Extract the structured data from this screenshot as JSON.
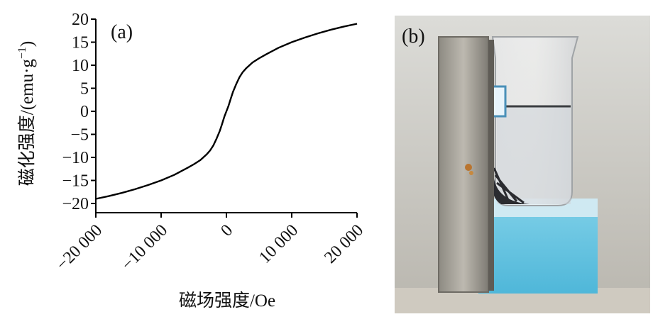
{
  "chart_data": {
    "type": "line",
    "panel_label": "(a)",
    "xlabel": "磁场强度/Oe",
    "ylabel": "磁化强度/(emu·g",
    "ylabel_sup": "−1",
    "ylabel_end": ")",
    "xlim": [
      -20000,
      20000
    ],
    "ylim": [
      -22,
      20
    ],
    "x_ticks": [
      -20000,
      -10000,
      0,
      10000,
      20000
    ],
    "x_tick_labels": [
      "−20 000",
      "−10 000",
      "0",
      "10 000",
      "20 000"
    ],
    "y_ticks": [
      20,
      15,
      10,
      5,
      0,
      -5,
      -10,
      -15,
      -20
    ],
    "y_tick_labels": [
      "20",
      "15",
      "10",
      "5",
      "0",
      "−5",
      "−10",
      "−15",
      "−20"
    ],
    "grid": false,
    "series": [
      {
        "color": "#000000",
        "x": [
          -20000,
          -18000,
          -16000,
          -14000,
          -12000,
          -10000,
          -8000,
          -6000,
          -5000,
          -4000,
          -3000,
          -2500,
          -2000,
          -1500,
          -1000,
          -700,
          -500,
          -300,
          0,
          300,
          500,
          700,
          1000,
          1500,
          2000,
          2500,
          3000,
          4000,
          5000,
          6000,
          8000,
          10000,
          12000,
          14000,
          16000,
          18000,
          20000
        ],
        "y": [
          -19.0,
          -18.4,
          -17.7,
          -16.9,
          -16.0,
          -15.0,
          -13.8,
          -12.3,
          -11.5,
          -10.6,
          -9.3,
          -8.5,
          -7.4,
          -5.9,
          -4.2,
          -2.9,
          -2.0,
          -1.1,
          0.0,
          1.1,
          2.0,
          2.9,
          4.2,
          5.9,
          7.4,
          8.5,
          9.3,
          10.6,
          11.5,
          12.3,
          13.8,
          15.0,
          16.0,
          16.9,
          17.7,
          18.4,
          19.0
        ]
      }
    ]
  },
  "photo": {
    "panel_label": "(b)"
  }
}
